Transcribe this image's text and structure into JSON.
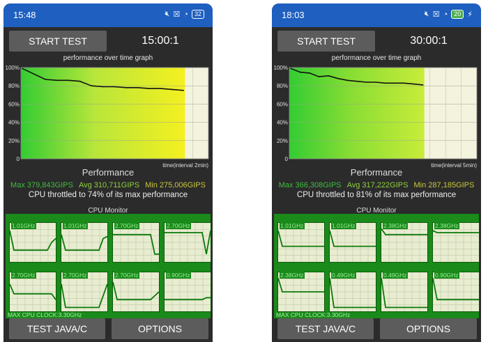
{
  "colors": {
    "status_bar": "#1e5fbf",
    "background": "#2b2b2b",
    "button": "#5c5c5c",
    "cpu_panel": "#1a8a1a",
    "max_text": "#3dbf3d",
    "avg_text": "#8fd03a",
    "min_text": "#c8c83a"
  },
  "icons": [
    "mute-icon",
    "sim-x-icon",
    "wifi-icon",
    "battery-icon",
    "charging-icon"
  ],
  "phones": [
    {
      "status": {
        "time": "15:48",
        "battery": "32",
        "charging": false
      },
      "start_label": "START TEST",
      "timer": "15:00:1",
      "graph": {
        "title": "performance over time graph",
        "y_ticks": [
          "100%",
          "80%",
          "60%",
          "40%",
          "20%",
          "0"
        ],
        "x_label": "time(interval 2min)",
        "fill_fraction": 0.875
      },
      "chart_data": {
        "type": "line",
        "x": [
          0,
          1,
          2,
          3,
          4,
          5,
          6,
          7,
          8,
          9,
          10,
          11,
          12,
          13,
          14
        ],
        "y": [
          99,
          93,
          87,
          86,
          86,
          85,
          80,
          79,
          79,
          78,
          78,
          77,
          77,
          76,
          75
        ],
        "ylim": [
          0,
          100
        ],
        "title": "performance over time graph",
        "xlabel": "time(interval 2min)"
      },
      "performance": {
        "title": "Performance",
        "max": "Max 379,843GIPS",
        "avg": "Avg 310,711GIPS",
        "min": "Min 275,006GIPS",
        "throttle_text": "CPU throttled to 74% of its max performance"
      },
      "cpu": {
        "title": "CPU Monitor",
        "cores": [
          {
            "freq": "1.01GHz",
            "values": [
              0.8,
              0.3,
              0.3,
              0.3,
              0.3,
              0.3,
              0.3,
              0.3,
              0.3,
              0.3,
              0.5,
              0.6
            ]
          },
          {
            "freq": "1.01GHz",
            "values": [
              0.7,
              0.3,
              0.3,
              0.3,
              0.3,
              0.3,
              0.3,
              0.3,
              0.3,
              0.3,
              0.6,
              0.65
            ]
          },
          {
            "freq": "2.70GHz",
            "values": [
              0.7,
              0.7,
              0.7,
              0.7,
              0.7,
              0.7,
              0.7,
              0.7,
              0.7,
              0.7,
              0.2,
              0.2
            ]
          },
          {
            "freq": "2.70GHz",
            "values": [
              0.75,
              0.75,
              0.75,
              0.75,
              0.75,
              0.75,
              0.75,
              0.75,
              0.75,
              0.75,
              0.2,
              0.8
            ]
          },
          {
            "freq": "2.70GHz",
            "values": [
              0.7,
              0.45,
              0.45,
              0.45,
              0.45,
              0.45,
              0.45,
              0.45,
              0.45,
              0.45,
              0.45,
              0.3
            ]
          },
          {
            "freq": "2.70GHz",
            "values": [
              0.7,
              0.1,
              0.1,
              0.1,
              0.1,
              0.1,
              0.1,
              0.1,
              0.1,
              0.1,
              0.4,
              0.7
            ]
          },
          {
            "freq": "2.70GHz",
            "values": [
              0.75,
              0.3,
              0.3,
              0.3,
              0.3,
              0.3,
              0.3,
              0.3,
              0.3,
              0.3,
              0.4,
              0.5
            ]
          },
          {
            "freq": "0.90GHz",
            "values": [
              0.3,
              0.3,
              0.3,
              0.3,
              0.3,
              0.3,
              0.3,
              0.3,
              0.3,
              0.3,
              0.35,
              0.35
            ]
          }
        ],
        "max_clock": "MAX CPU CLOCK:3.30GHz"
      },
      "test_label": "TEST JAVA/C",
      "options_label": "OPTIONS"
    },
    {
      "status": {
        "time": "18:03",
        "battery": "20",
        "charging": true
      },
      "start_label": "START TEST",
      "timer": "30:00:1",
      "graph": {
        "title": "performance over time graph",
        "y_ticks": [
          "100%",
          "80%",
          "60%",
          "40%",
          "20%",
          "0"
        ],
        "x_label": "time(interval 5min)",
        "fill_fraction": 0.72
      },
      "chart_data": {
        "type": "line",
        "x": [
          0,
          1,
          2,
          3,
          4,
          5,
          6,
          7,
          8,
          9,
          10,
          11,
          12,
          13,
          14
        ],
        "y": [
          99,
          95,
          94,
          90,
          91,
          88,
          86,
          85,
          84,
          84,
          83,
          83,
          83,
          82,
          81
        ],
        "ylim": [
          0,
          100
        ],
        "title": "performance over time graph",
        "xlabel": "time(interval 5min)"
      },
      "performance": {
        "title": "Performance",
        "max": "Max 366,308GIPS",
        "avg": "Avg 317,222GIPS",
        "min": "Min 287,185GIPS",
        "throttle_text": "CPU throttled to 81% of its max performance"
      },
      "cpu": {
        "title": "CPU Monitor",
        "cores": [
          {
            "freq": "1.01GHz",
            "values": [
              0.8,
              0.4,
              0.4,
              0.4,
              0.4,
              0.4,
              0.4,
              0.4,
              0.4,
              0.4,
              0.4,
              0.4
            ]
          },
          {
            "freq": "1.01GHz",
            "values": [
              0.8,
              0.4,
              0.4,
              0.4,
              0.4,
              0.4,
              0.4,
              0.4,
              0.4,
              0.4,
              0.4,
              0.4
            ]
          },
          {
            "freq": "2.38GHz",
            "values": [
              0.85,
              0.7,
              0.7,
              0.7,
              0.7,
              0.7,
              0.7,
              0.7,
              0.7,
              0.7,
              0.7,
              0.7
            ]
          },
          {
            "freq": "2.38GHz",
            "values": [
              0.8,
              0.75,
              0.75,
              0.75,
              0.75,
              0.75,
              0.75,
              0.75,
              0.75,
              0.75,
              0.75,
              0.75
            ]
          },
          {
            "freq": "2.38GHz",
            "values": [
              0.85,
              0.5,
              0.5,
              0.5,
              0.5,
              0.5,
              0.5,
              0.5,
              0.5,
              0.5,
              0.5,
              0.5
            ]
          },
          {
            "freq": "0.49GHz",
            "values": [
              0.85,
              0.1,
              0.1,
              0.1,
              0.1,
              0.1,
              0.1,
              0.1,
              0.1,
              0.1,
              0.1,
              0.1
            ]
          },
          {
            "freq": "0.49GHz",
            "values": [
              0.85,
              0.1,
              0.1,
              0.1,
              0.1,
              0.1,
              0.1,
              0.1,
              0.1,
              0.1,
              0.1,
              0.1
            ]
          },
          {
            "freq": "0.90GHz",
            "values": [
              0.85,
              0.3,
              0.3,
              0.3,
              0.3,
              0.3,
              0.3,
              0.3,
              0.3,
              0.3,
              0.3,
              0.3
            ]
          }
        ],
        "max_clock": "MAX CPU CLOCK:3.30GHz"
      },
      "test_label": "TEST JAVA/C",
      "options_label": "OPTIONS"
    }
  ]
}
